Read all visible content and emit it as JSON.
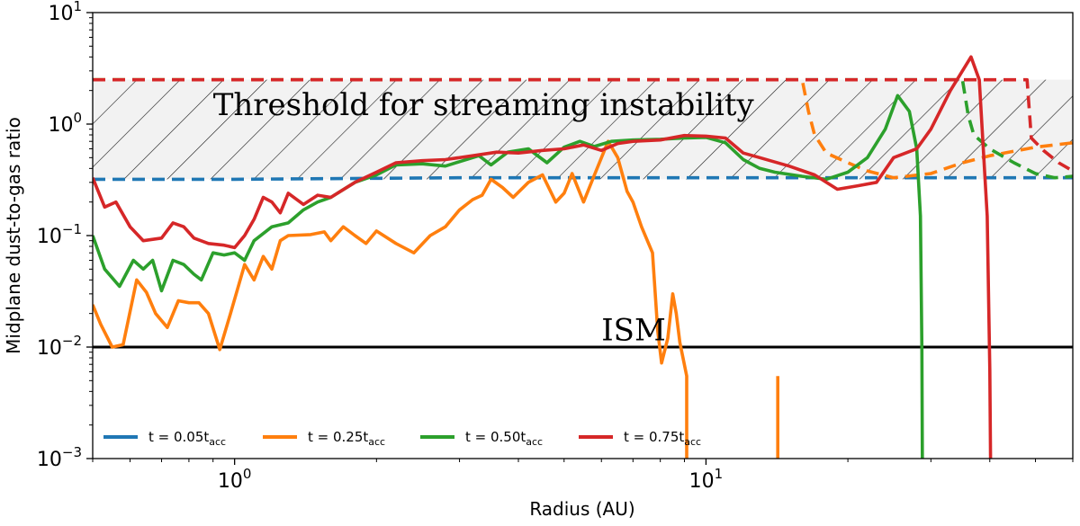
{
  "chart_data": {
    "type": "line",
    "xscale": "log",
    "yscale": "log",
    "xlim": [
      0.5,
      60
    ],
    "ylim": [
      0.001,
      10
    ],
    "xlabel": "Radius (AU)",
    "ylabel": "Midplane dust-to-gas ratio",
    "x_ticks": [
      {
        "value": 1,
        "base": "10",
        "exp": "0"
      },
      {
        "value": 10,
        "base": "10",
        "exp": "1"
      }
    ],
    "y_ticks": [
      {
        "value": 0.001,
        "base": "10",
        "exp": "−3"
      },
      {
        "value": 0.01,
        "base": "10",
        "exp": "−2"
      },
      {
        "value": 0.1,
        "base": "10",
        "exp": "−1"
      },
      {
        "value": 1,
        "base": "10",
        "exp": "0"
      },
      {
        "value": 10,
        "base": "10",
        "exp": "1"
      }
    ],
    "annotations": {
      "threshold": "Threshold for streaming instability",
      "ism": "ISM"
    },
    "shaded_region": {
      "x": [
        0.5,
        60
      ],
      "y": [
        0.32,
        2.5
      ],
      "label": "Threshold for streaming instability"
    },
    "ism_level": 0.01,
    "legend": {
      "placement": "lower-left"
    },
    "series": [
      {
        "name": "t = 0.05t_acc",
        "legend_main": "t = 0.05t",
        "legend_sub": "acc",
        "color": "#1f77b4",
        "solid": [],
        "dashed": [
          [
            0.5,
            0.32
          ],
          [
            1,
            0.32
          ],
          [
            3,
            0.33
          ],
          [
            10,
            0.33
          ],
          [
            25,
            0.33
          ],
          [
            40,
            0.33
          ],
          [
            60,
            0.33
          ]
        ]
      },
      {
        "name": "t = 0.25t_acc",
        "legend_main": "t = 0.25t",
        "legend_sub": "acc",
        "color": "#ff7f0e",
        "solid": [
          [
            0.5,
            0.024
          ],
          [
            0.52,
            0.016
          ],
          [
            0.55,
            0.01
          ],
          [
            0.58,
            0.0105
          ],
          [
            0.62,
            0.04
          ],
          [
            0.65,
            0.031
          ],
          [
            0.68,
            0.02
          ],
          [
            0.72,
            0.015
          ],
          [
            0.76,
            0.026
          ],
          [
            0.8,
            0.025
          ],
          [
            0.84,
            0.025
          ],
          [
            0.88,
            0.02
          ],
          [
            0.93,
            0.0095
          ],
          [
            0.98,
            0.02
          ],
          [
            1.05,
            0.055
          ],
          [
            1.1,
            0.04
          ],
          [
            1.15,
            0.065
          ],
          [
            1.2,
            0.05
          ],
          [
            1.25,
            0.09
          ],
          [
            1.3,
            0.1
          ],
          [
            1.45,
            0.102
          ],
          [
            1.55,
            0.108
          ],
          [
            1.6,
            0.09
          ],
          [
            1.7,
            0.12
          ],
          [
            1.8,
            0.1
          ],
          [
            1.9,
            0.085
          ],
          [
            2,
            0.11
          ],
          [
            2.2,
            0.085
          ],
          [
            2.4,
            0.07
          ],
          [
            2.6,
            0.1
          ],
          [
            2.8,
            0.12
          ],
          [
            3.0,
            0.17
          ],
          [
            3.2,
            0.21
          ],
          [
            3.35,
            0.23
          ],
          [
            3.5,
            0.32
          ],
          [
            3.7,
            0.27
          ],
          [
            3.9,
            0.22
          ],
          [
            4.2,
            0.3
          ],
          [
            4.5,
            0.35
          ],
          [
            4.8,
            0.2
          ],
          [
            5.0,
            0.24
          ],
          [
            5.2,
            0.36
          ],
          [
            5.5,
            0.2
          ],
          [
            5.8,
            0.35
          ],
          [
            6.2,
            0.7
          ],
          [
            6.5,
            0.5
          ],
          [
            6.8,
            0.25
          ],
          [
            7.0,
            0.2
          ],
          [
            7.3,
            0.12
          ],
          [
            7.7,
            0.07
          ],
          [
            7.9,
            0.014
          ],
          [
            8.05,
            0.0072
          ],
          [
            8.3,
            0.012
          ],
          [
            8.5,
            0.03
          ],
          [
            8.65,
            0.02
          ],
          [
            8.8,
            0.011
          ],
          [
            9.1,
            0.0055
          ],
          [
            9.1,
            0.0005
          ],
          null,
          [
            14.2,
            0.0055
          ],
          [
            14.2,
            0.0005
          ]
        ],
        "dashed": [
          [
            0.5,
            2.5
          ],
          [
            10,
            2.5
          ],
          [
            16,
            2.5
          ],
          [
            16.5,
            1.3
          ],
          [
            17,
            0.8
          ],
          [
            18,
            0.55
          ],
          [
            20,
            0.45
          ],
          [
            22,
            0.38
          ],
          [
            25,
            0.33
          ],
          [
            30,
            0.36
          ],
          [
            35,
            0.45
          ],
          [
            40,
            0.52
          ],
          [
            50,
            0.62
          ],
          [
            60,
            0.68
          ]
        ]
      },
      {
        "name": "t = 0.50t_acc",
        "legend_main": "t = 0.50t",
        "legend_sub": "acc",
        "color": "#2ca02c",
        "solid": [
          [
            0.5,
            0.1
          ],
          [
            0.53,
            0.05
          ],
          [
            0.57,
            0.035
          ],
          [
            0.61,
            0.06
          ],
          [
            0.64,
            0.05
          ],
          [
            0.67,
            0.06
          ],
          [
            0.7,
            0.032
          ],
          [
            0.74,
            0.06
          ],
          [
            0.78,
            0.055
          ],
          [
            0.82,
            0.045
          ],
          [
            0.85,
            0.04
          ],
          [
            0.9,
            0.07
          ],
          [
            0.95,
            0.067
          ],
          [
            1.0,
            0.07
          ],
          [
            1.05,
            0.06
          ],
          [
            1.1,
            0.09
          ],
          [
            1.2,
            0.12
          ],
          [
            1.3,
            0.13
          ],
          [
            1.4,
            0.17
          ],
          [
            1.5,
            0.2
          ],
          [
            1.6,
            0.22
          ],
          [
            1.8,
            0.3
          ],
          [
            2.0,
            0.35
          ],
          [
            2.2,
            0.43
          ],
          [
            2.5,
            0.44
          ],
          [
            2.8,
            0.42
          ],
          [
            3.0,
            0.46
          ],
          [
            3.3,
            0.52
          ],
          [
            3.5,
            0.43
          ],
          [
            3.8,
            0.56
          ],
          [
            4.2,
            0.6
          ],
          [
            4.6,
            0.45
          ],
          [
            5.0,
            0.62
          ],
          [
            5.4,
            0.7
          ],
          [
            5.8,
            0.63
          ],
          [
            6.3,
            0.7
          ],
          [
            7.0,
            0.72
          ],
          [
            8.0,
            0.73
          ],
          [
            9.0,
            0.75
          ],
          [
            10,
            0.76
          ],
          [
            11,
            0.68
          ],
          [
            12,
            0.48
          ],
          [
            13,
            0.4
          ],
          [
            14,
            0.37
          ],
          [
            16,
            0.34
          ],
          [
            18,
            0.32
          ],
          [
            20,
            0.37
          ],
          [
            22,
            0.5
          ],
          [
            24,
            0.9
          ],
          [
            25.5,
            1.8
          ],
          [
            27,
            1.3
          ],
          [
            28,
            0.6
          ],
          [
            28.5,
            0.15
          ],
          [
            28.7,
            0.01
          ],
          [
            28.8,
            0.0005
          ]
        ],
        "dashed": [
          [
            0.5,
            2.5
          ],
          [
            20,
            2.5
          ],
          [
            35,
            2.5
          ],
          [
            36,
            1.2
          ],
          [
            37,
            0.8
          ],
          [
            40,
            0.6
          ],
          [
            45,
            0.45
          ],
          [
            50,
            0.36
          ],
          [
            55,
            0.33
          ],
          [
            60,
            0.34
          ]
        ]
      },
      {
        "name": "t = 0.75t_acc",
        "legend_main": "t = 0.75t",
        "legend_sub": "acc",
        "color": "#d62728",
        "solid": [
          [
            0.5,
            0.33
          ],
          [
            0.53,
            0.18
          ],
          [
            0.56,
            0.2
          ],
          [
            0.6,
            0.12
          ],
          [
            0.64,
            0.09
          ],
          [
            0.7,
            0.095
          ],
          [
            0.74,
            0.13
          ],
          [
            0.78,
            0.12
          ],
          [
            0.82,
            0.095
          ],
          [
            0.88,
            0.085
          ],
          [
            0.95,
            0.082
          ],
          [
            1.0,
            0.078
          ],
          [
            1.05,
            0.1
          ],
          [
            1.1,
            0.14
          ],
          [
            1.15,
            0.22
          ],
          [
            1.2,
            0.2
          ],
          [
            1.25,
            0.16
          ],
          [
            1.3,
            0.24
          ],
          [
            1.4,
            0.19
          ],
          [
            1.5,
            0.23
          ],
          [
            1.6,
            0.22
          ],
          [
            1.8,
            0.3
          ],
          [
            2.0,
            0.37
          ],
          [
            2.2,
            0.45
          ],
          [
            2.5,
            0.47
          ],
          [
            2.8,
            0.48
          ],
          [
            3.2,
            0.52
          ],
          [
            3.6,
            0.56
          ],
          [
            4.0,
            0.55
          ],
          [
            4.5,
            0.58
          ],
          [
            5.0,
            0.6
          ],
          [
            5.5,
            0.65
          ],
          [
            6.0,
            0.58
          ],
          [
            6.5,
            0.67
          ],
          [
            7.0,
            0.7
          ],
          [
            8.0,
            0.72
          ],
          [
            9.0,
            0.79
          ],
          [
            10,
            0.78
          ],
          [
            11,
            0.75
          ],
          [
            12,
            0.55
          ],
          [
            13,
            0.5
          ],
          [
            15,
            0.42
          ],
          [
            17,
            0.35
          ],
          [
            19,
            0.26
          ],
          [
            21,
            0.28
          ],
          [
            23,
            0.3
          ],
          [
            25,
            0.5
          ],
          [
            28,
            0.6
          ],
          [
            30,
            0.9
          ],
          [
            33,
            2.0
          ],
          [
            35,
            3.0
          ],
          [
            36.5,
            4.0
          ],
          [
            38,
            2.5
          ],
          [
            39.5,
            0.15
          ],
          [
            40,
            0.0062
          ],
          [
            40.2,
            0.0005
          ]
        ],
        "dashed": [
          [
            0.5,
            2.5
          ],
          [
            30,
            2.5
          ],
          [
            48,
            2.5
          ],
          [
            49,
            0.75
          ],
          [
            52,
            0.58
          ],
          [
            56,
            0.45
          ],
          [
            60,
            0.38
          ]
        ]
      }
    ]
  }
}
